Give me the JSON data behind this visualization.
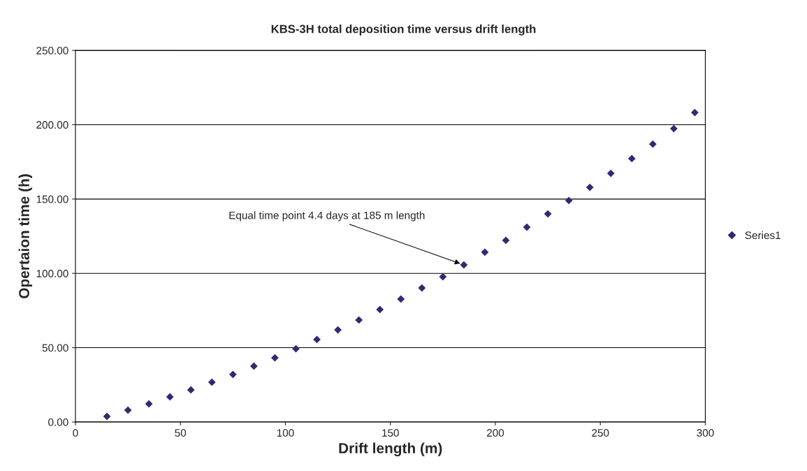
{
  "chart_data": {
    "type": "scatter",
    "title": "KBS-3H total deposition time versus drift length",
    "xlabel": "Drift length (m)",
    "ylabel": "Opertaion time (h)",
    "x": [
      15,
      25,
      35,
      45,
      55,
      65,
      75,
      85,
      95,
      105,
      115,
      125,
      135,
      145,
      155,
      165,
      175,
      185,
      195,
      205,
      215,
      225,
      235,
      245,
      255,
      265,
      275,
      285,
      295
    ],
    "series": [
      {
        "name": "Series1",
        "color": "#2e2a73",
        "values": [
          3.8,
          8,
          12.2,
          16.9,
          21.6,
          26.8,
          32,
          37.6,
          43.2,
          49.3,
          55.5,
          62,
          68.6,
          75.7,
          82.7,
          90.2,
          97.7,
          105.7,
          114.2,
          122.2,
          131.1,
          140,
          149,
          157.9,
          167.3,
          177.2,
          187,
          197.4,
          208.2
        ]
      }
    ],
    "xlim": [
      0,
      300
    ],
    "xticks": [
      0,
      50,
      100,
      150,
      200,
      250,
      300
    ],
    "ylim": [
      0,
      250
    ],
    "yticks": [
      {
        "value": 0,
        "label": "0.00"
      },
      {
        "value": 50,
        "label": "50.00"
      },
      {
        "value": 100,
        "label": "100.00"
      },
      {
        "value": 150,
        "label": "150.00"
      },
      {
        "value": 200,
        "label": "200.00"
      },
      {
        "value": 250,
        "label": "250.00"
      }
    ],
    "annotations": [
      {
        "text": "Equal time point 4.4 days at 185 m length",
        "x": 185,
        "y": 105.7
      }
    ],
    "grid": "y",
    "legend": "right",
    "marker": "diamond"
  }
}
